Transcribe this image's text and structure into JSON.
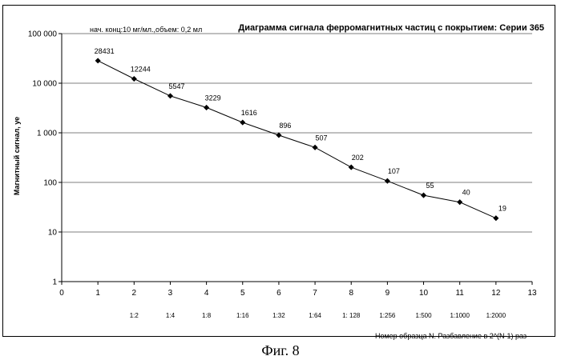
{
  "note": "нач. конц:10 мг/мл.,объем: 0,2 мл",
  "figure_caption": "Фиг. 8",
  "chart_data": {
    "type": "line",
    "title": "Диаграмма сигнала ферромагнитных частиц с покрытием: Серии 365",
    "xlabel": "Номер образца N. Разбавление в 2^(N-1) раз",
    "ylabel": "Магнитный сигнал, уе",
    "y_scale": "log",
    "xlim": [
      0,
      13
    ],
    "ylim": [
      1,
      100000
    ],
    "grid": true,
    "x_ticks": [
      "0",
      "1",
      "2",
      "3",
      "4",
      "5",
      "6",
      "7",
      "8",
      "9",
      "10",
      "11",
      "12",
      "13"
    ],
    "y_ticks": [
      {
        "value": 1,
        "label": "1"
      },
      {
        "value": 10,
        "label": "10"
      },
      {
        "value": 100,
        "label": "100"
      },
      {
        "value": 1000,
        "label": "1 000"
      },
      {
        "value": 10000,
        "label": "10 000"
      },
      {
        "value": 100000,
        "label": "100 000"
      }
    ],
    "dilution_labels": [
      {
        "x": 2,
        "label": "1:2"
      },
      {
        "x": 3,
        "label": "1:4"
      },
      {
        "x": 4,
        "label": "1:8"
      },
      {
        "x": 5,
        "label": "1:16"
      },
      {
        "x": 6,
        "label": "1:32"
      },
      {
        "x": 7,
        "label": "1:64"
      },
      {
        "x": 8,
        "label": "1: 128"
      },
      {
        "x": 9,
        "label": "1:256"
      },
      {
        "x": 10,
        "label": "1:500"
      },
      {
        "x": 11,
        "label": "1:1000"
      },
      {
        "x": 12,
        "label": "1:2000"
      }
    ],
    "x": [
      1,
      2,
      3,
      4,
      5,
      6,
      7,
      8,
      9,
      10,
      11,
      12
    ],
    "values": [
      28431,
      12244,
      5547,
      3229,
      1616,
      896,
      507,
      202,
      107,
      55,
      40,
      19
    ],
    "data_labels": [
      "28431",
      "12244",
      "5547",
      "3229",
      "1616",
      "896",
      "507",
      "202",
      "107",
      "55",
      "40",
      "19"
    ],
    "color": "#000000"
  }
}
